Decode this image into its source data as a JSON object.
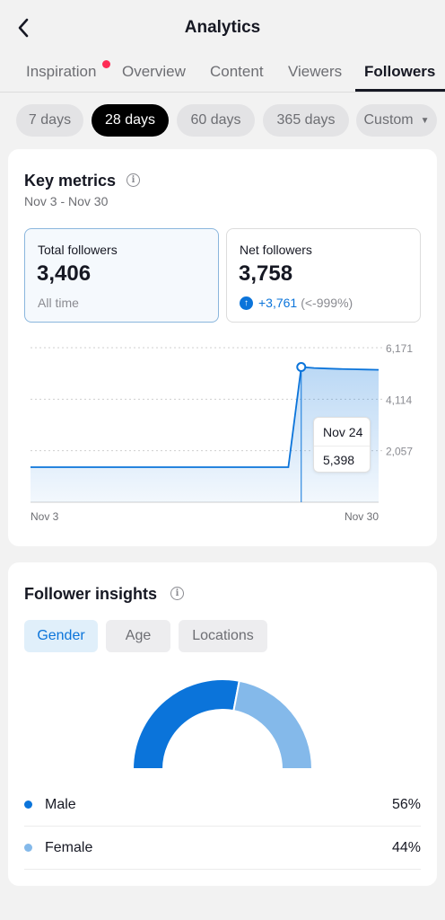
{
  "header": {
    "title": "Analytics",
    "back_icon": "chevron-left-icon"
  },
  "tabs": [
    {
      "label": "Inspiration",
      "has_dot": true
    },
    {
      "label": "Overview"
    },
    {
      "label": "Content"
    },
    {
      "label": "Viewers"
    },
    {
      "label": "Followers",
      "active": true
    }
  ],
  "ranges": [
    {
      "label": "7 days"
    },
    {
      "label": "28 days",
      "active": true
    },
    {
      "label": "60 days"
    },
    {
      "label": "365 days"
    },
    {
      "label": "Custom",
      "has_caret": true
    }
  ],
  "key_metrics": {
    "title": "Key metrics",
    "date_range": "Nov 3 - Nov 30",
    "total": {
      "label": "Total followers",
      "value": "3,406",
      "sub": "All time"
    },
    "net": {
      "label": "Net followers",
      "value": "3,758",
      "change": "+3,761",
      "change_pct": "(<-999%)"
    }
  },
  "chart_data": {
    "type": "area",
    "x_start_label": "Nov 3",
    "x_end_label": "Nov 30",
    "y_ticks": [
      "6,171",
      "4,114",
      "2,057"
    ],
    "ylim": [
      0,
      6171
    ],
    "x": [
      "Nov 3",
      "Nov 4",
      "Nov 5",
      "Nov 6",
      "Nov 7",
      "Nov 8",
      "Nov 9",
      "Nov 10",
      "Nov 11",
      "Nov 12",
      "Nov 13",
      "Nov 14",
      "Nov 15",
      "Nov 16",
      "Nov 17",
      "Nov 18",
      "Nov 19",
      "Nov 20",
      "Nov 21",
      "Nov 22",
      "Nov 23",
      "Nov 24",
      "Nov 25",
      "Nov 26",
      "Nov 27",
      "Nov 28",
      "Nov 29",
      "Nov 30"
    ],
    "values": [
      1400,
      1400,
      1400,
      1400,
      1400,
      1400,
      1400,
      1400,
      1400,
      1400,
      1400,
      1400,
      1400,
      1400,
      1400,
      1400,
      1400,
      1400,
      1400,
      1400,
      1400,
      5398,
      5360,
      5340,
      5320,
      5310,
      5300,
      5290
    ],
    "highlight": {
      "date": "Nov 24",
      "value": "5,398",
      "index": 21
    },
    "color": "#0b74da"
  },
  "insights": {
    "title": "Follower insights",
    "segments": [
      {
        "label": "Gender",
        "active": true
      },
      {
        "label": "Age"
      },
      {
        "label": "Locations"
      }
    ],
    "gender": [
      {
        "label": "Male",
        "value": "56%",
        "share": 0.56,
        "color": "#0b74da"
      },
      {
        "label": "Female",
        "value": "44%",
        "share": 0.44,
        "color": "#84b9ea"
      }
    ]
  }
}
